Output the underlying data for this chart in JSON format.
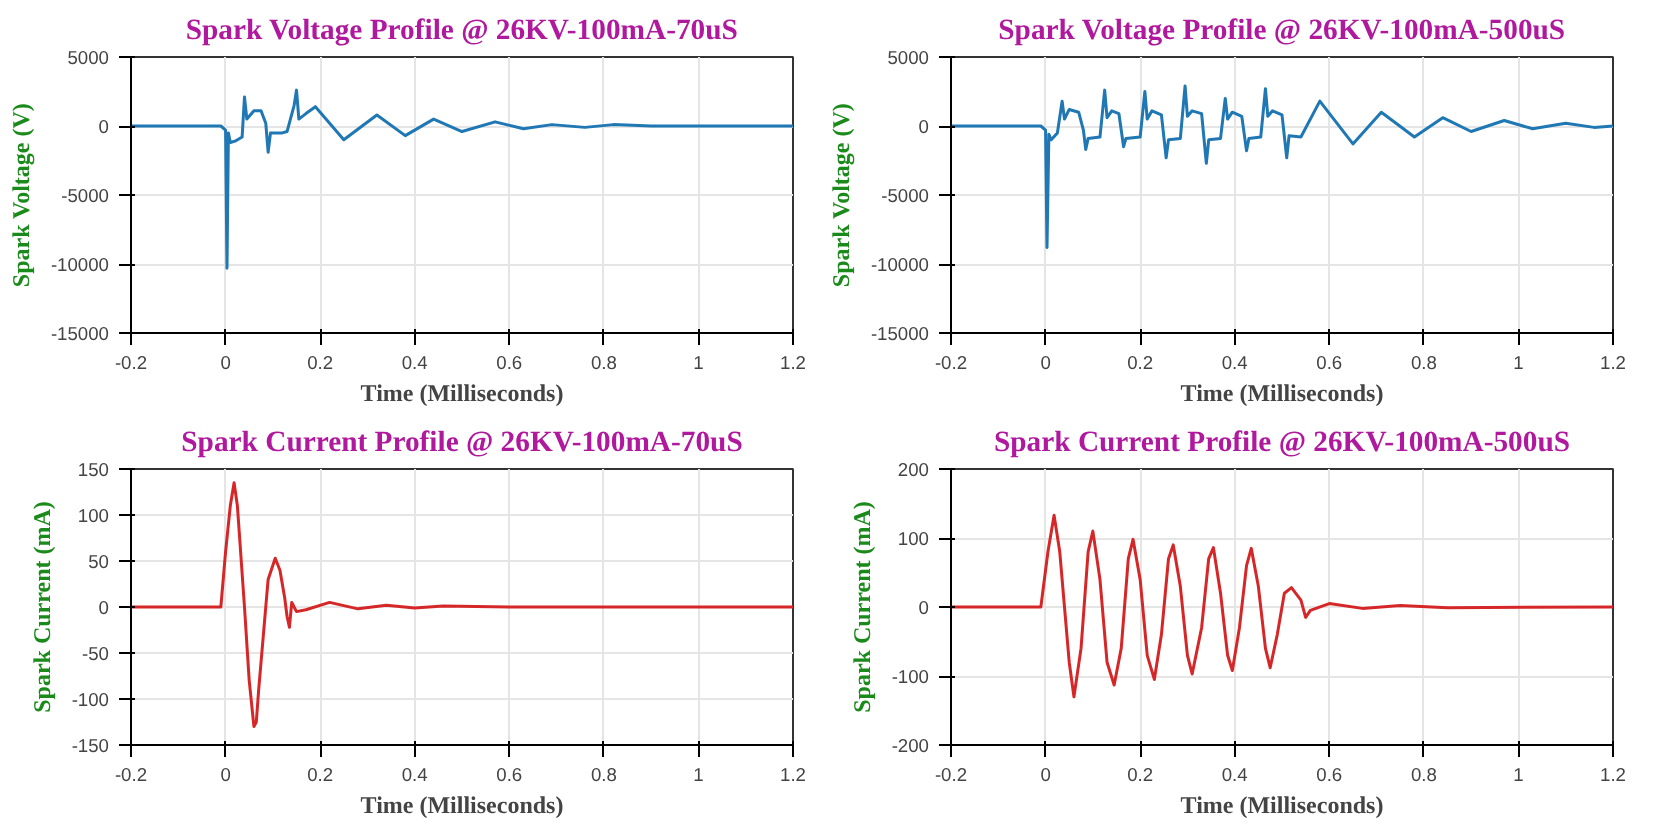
{
  "chart_data": [
    {
      "type": "line",
      "title": "Spark Voltage Profile @ 26KV-100mA-70uS",
      "xlabel": "Time (Milliseconds)",
      "ylabel": "Spark Voltage (V)",
      "xlim": [
        -0.2,
        1.2
      ],
      "ylim": [
        -15000,
        5000
      ],
      "xticks": [
        -0.2,
        0,
        0.2,
        0.4,
        0.6,
        0.8,
        1,
        1.2
      ],
      "yticks": [
        -15000,
        -10000,
        -5000,
        0,
        5000
      ],
      "grid": true,
      "series": [
        {
          "color": "#1f77b4",
          "x": [
            -0.2,
            -0.01,
            0,
            0.003,
            0.006,
            0.01,
            0.02,
            0.035,
            0.04,
            0.045,
            0.06,
            0.075,
            0.085,
            0.09,
            0.095,
            0.12,
            0.13,
            0.145,
            0.15,
            0.155,
            0.17,
            0.19,
            0.21,
            0.25,
            0.32,
            0.38,
            0.44,
            0.5,
            0.57,
            0.63,
            0.69,
            0.76,
            0.82,
            0.9,
            1.0,
            1.2
          ],
          "values": [
            0,
            0,
            -300,
            -10300,
            -500,
            -1200,
            -1100,
            -800,
            2100,
            500,
            1100,
            1100,
            200,
            -1900,
            -500,
            -500,
            -400,
            1500,
            2600,
            500,
            900,
            1400,
            600,
            -1000,
            800,
            -700,
            500,
            -400,
            300,
            -200,
            100,
            -100,
            100,
            0,
            0,
            0
          ]
        }
      ]
    },
    {
      "type": "line",
      "title": "Spark Voltage Profile @ 26KV-100mA-500uS",
      "xlabel": "Time (Milliseconds)",
      "ylabel": "Spark Voltage (V)",
      "xlim": [
        -0.2,
        1.2
      ],
      "ylim": [
        -15000,
        5000
      ],
      "xticks": [
        -0.2,
        0,
        0.2,
        0.4,
        0.6,
        0.8,
        1,
        1.2
      ],
      "yticks": [
        -15000,
        -10000,
        -5000,
        0,
        5000
      ],
      "grid": true,
      "series": [
        {
          "color": "#1f77b4",
          "x": [
            -0.2,
            -0.01,
            0,
            0.003,
            0.007,
            0.012,
            0.025,
            0.035,
            0.04,
            0.05,
            0.07,
            0.08,
            0.085,
            0.09,
            0.115,
            0.125,
            0.13,
            0.14,
            0.155,
            0.165,
            0.17,
            0.2,
            0.21,
            0.215,
            0.225,
            0.245,
            0.255,
            0.26,
            0.285,
            0.295,
            0.3,
            0.31,
            0.33,
            0.34,
            0.345,
            0.37,
            0.38,
            0.385,
            0.395,
            0.415,
            0.425,
            0.43,
            0.455,
            0.465,
            0.47,
            0.48,
            0.5,
            0.51,
            0.515,
            0.54,
            0.58,
            0.65,
            0.71,
            0.78,
            0.84,
            0.9,
            0.97,
            1.03,
            1.1,
            1.16,
            1.2
          ],
          "values": [
            0,
            0,
            -300,
            -8800,
            -600,
            -1000,
            -500,
            1800,
            500,
            1200,
            1000,
            -300,
            -1700,
            -900,
            -800,
            2600,
            600,
            1100,
            900,
            -1500,
            -900,
            -800,
            2500,
            500,
            1100,
            800,
            -2300,
            -1000,
            -900,
            2900,
            700,
            1100,
            900,
            -2700,
            -1000,
            -900,
            2000,
            500,
            1000,
            700,
            -1800,
            -900,
            -800,
            2700,
            700,
            1100,
            800,
            -2300,
            -700,
            -800,
            1800,
            -1300,
            1000,
            -800,
            600,
            -400,
            400,
            -200,
            200,
            -100,
            0
          ]
        }
      ]
    },
    {
      "type": "line",
      "title": "Spark Current Profile @ 26KV-100mA-70uS",
      "xlabel": "Time (Milliseconds)",
      "ylabel": "Spark Current (mA)",
      "xlim": [
        -0.2,
        1.2
      ],
      "ylim": [
        -150,
        150
      ],
      "xticks": [
        -0.2,
        0,
        0.2,
        0.4,
        0.6,
        0.8,
        1,
        1.2
      ],
      "yticks": [
        -150,
        -100,
        -50,
        0,
        50,
        100,
        150
      ],
      "grid": true,
      "series": [
        {
          "color": "#d62728",
          "x": [
            -0.2,
            -0.01,
            0,
            0.01,
            0.018,
            0.025,
            0.04,
            0.05,
            0.06,
            0.065,
            0.07,
            0.08,
            0.09,
            0.105,
            0.115,
            0.125,
            0.13,
            0.135,
            0.14,
            0.15,
            0.17,
            0.22,
            0.28,
            0.34,
            0.4,
            0.46,
            0.6,
            1.2
          ],
          "values": [
            0,
            0,
            60,
            110,
            135,
            110,
            0,
            -80,
            -130,
            -125,
            -90,
            -30,
            30,
            53,
            40,
            10,
            -10,
            -22,
            5,
            -5,
            -3,
            5,
            -2,
            2,
            -1,
            1,
            0,
            0
          ]
        }
      ]
    },
    {
      "type": "line",
      "title": "Spark Current Profile @ 26KV-100mA-500uS",
      "xlabel": "Time (Milliseconds)",
      "ylabel": "Spark Current (mA)",
      "xlim": [
        -0.2,
        1.2
      ],
      "ylim": [
        -200,
        200
      ],
      "xticks": [
        -0.2,
        0,
        0.2,
        0.4,
        0.6,
        0.8,
        1,
        1.2
      ],
      "yticks": [
        -200,
        -100,
        0,
        100,
        200
      ],
      "grid": true,
      "series": [
        {
          "color": "#d62728",
          "x": [
            -0.2,
            -0.01,
            0.005,
            0.018,
            0.03,
            0.05,
            0.06,
            0.075,
            0.09,
            0.1,
            0.115,
            0.13,
            0.145,
            0.16,
            0.175,
            0.185,
            0.2,
            0.215,
            0.23,
            0.245,
            0.26,
            0.27,
            0.285,
            0.3,
            0.31,
            0.33,
            0.345,
            0.355,
            0.37,
            0.385,
            0.395,
            0.41,
            0.425,
            0.435,
            0.45,
            0.465,
            0.475,
            0.49,
            0.505,
            0.52,
            0.54,
            0.55,
            0.56,
            0.6,
            0.67,
            0.75,
            0.85,
            1.2
          ],
          "values": [
            0,
            0,
            80,
            133,
            80,
            -80,
            -130,
            -60,
            80,
            110,
            40,
            -80,
            -113,
            -60,
            70,
            98,
            40,
            -70,
            -105,
            -40,
            70,
            90,
            30,
            -70,
            -97,
            -30,
            70,
            86,
            20,
            -70,
            -92,
            -30,
            60,
            85,
            30,
            -60,
            -88,
            -40,
            20,
            28,
            10,
            -15,
            -5,
            5,
            -2,
            2,
            -1,
            0
          ]
        }
      ]
    }
  ]
}
